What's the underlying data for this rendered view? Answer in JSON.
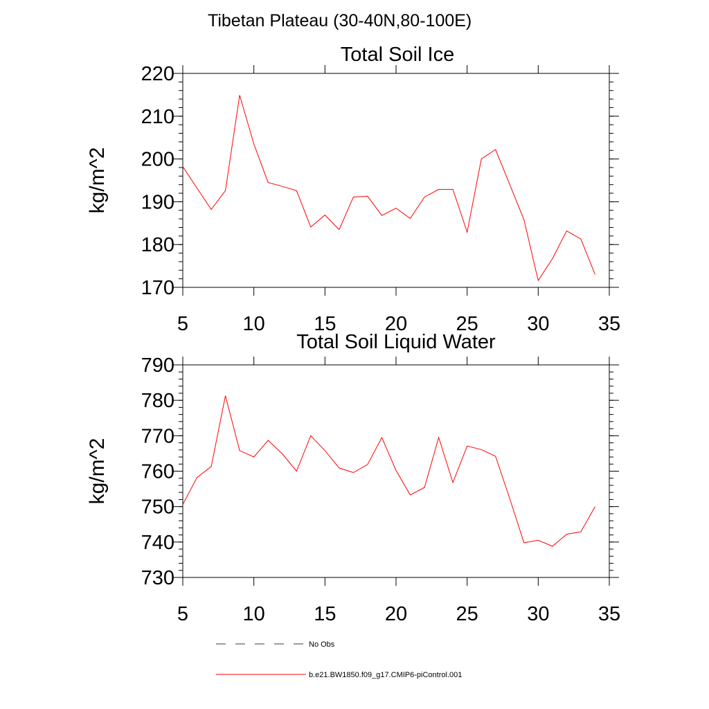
{
  "figure_title": "Tibetan Plateau (30-40N,80-100E)",
  "chart_data": [
    {
      "type": "line",
      "title": "Total Soil Ice",
      "xlabel": "",
      "ylabel": "kg/m^2",
      "xlim": [
        5,
        35
      ],
      "ylim": [
        170,
        220
      ],
      "xticks": [
        5,
        10,
        15,
        20,
        25,
        30,
        35
      ],
      "yticks": [
        170,
        180,
        190,
        200,
        210,
        220
      ],
      "grid": false,
      "series": [
        {
          "name": "b.e21.BW1850.f09_g17.CMIP6-piControl.001",
          "color": "#ff0000",
          "x": [
            5,
            6,
            7,
            8,
            9,
            10,
            11,
            12,
            13,
            14,
            15,
            16,
            17,
            18,
            19,
            20,
            21,
            22,
            23,
            24,
            25,
            26,
            27,
            28,
            29,
            30,
            31,
            32,
            33,
            34
          ],
          "y": [
            198.2,
            193.2,
            188.2,
            192.6,
            214.9,
            203.5,
            194.5,
            193.6,
            192.6,
            184.1,
            186.9,
            183.5,
            191.1,
            191.3,
            186.8,
            188.5,
            186.1,
            191.1,
            192.9,
            192.9,
            182.9,
            200.0,
            202.2,
            194.0,
            185.8,
            171.6,
            176.7,
            183.2,
            181.3,
            173.0
          ]
        }
      ]
    },
    {
      "type": "line",
      "title": "Total Soil Liquid Water",
      "xlabel": "",
      "ylabel": "kg/m^2",
      "xlim": [
        5,
        35
      ],
      "ylim": [
        730,
        790
      ],
      "xticks": [
        5,
        10,
        15,
        20,
        25,
        30,
        35
      ],
      "yticks": [
        730,
        740,
        750,
        760,
        770,
        780,
        790
      ],
      "grid": false,
      "series": [
        {
          "name": "b.e21.BW1850.f09_g17.CMIP6-piControl.001",
          "color": "#ff0000",
          "x": [
            5,
            6,
            7,
            8,
            9,
            10,
            11,
            12,
            13,
            14,
            15,
            16,
            17,
            18,
            19,
            20,
            21,
            22,
            23,
            24,
            25,
            26,
            27,
            28,
            29,
            30,
            31,
            32,
            33,
            34
          ],
          "y": [
            750.6,
            758.2,
            761.3,
            781.3,
            765.8,
            764.0,
            768.7,
            764.9,
            760.0,
            770.0,
            765.8,
            760.9,
            759.6,
            761.9,
            769.5,
            760.2,
            753.3,
            755.4,
            769.5,
            756.8,
            767.1,
            766.1,
            764.2,
            752.2,
            739.8,
            740.5,
            738.8,
            742.2,
            742.9,
            750.0
          ]
        }
      ]
    }
  ],
  "legend": [
    {
      "label": "No Obs",
      "style": "dashed",
      "color": "#333355"
    },
    {
      "label": "b.e21.BW1850.f09_g17.CMIP6-piControl.001",
      "style": "solid",
      "color": "#ff0000"
    }
  ]
}
